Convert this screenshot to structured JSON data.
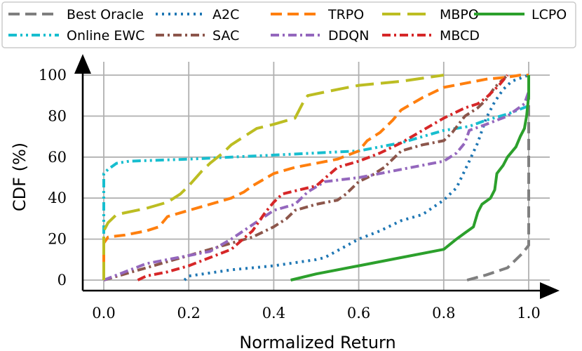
{
  "chart_data": {
    "type": "line",
    "title": "",
    "xlabel": "Normalized Return",
    "ylabel": "CDF (%)",
    "xlim": [
      -0.05,
      1.05
    ],
    "ylim": [
      -5,
      103
    ],
    "grid": true,
    "legend_placement": "top",
    "x_ticks": [
      0.0,
      0.2,
      0.4,
      0.6,
      0.8,
      1.0
    ],
    "x_tick_labels": [
      "0.0",
      "0.2",
      "0.4",
      "0.6",
      "0.8",
      "1.0"
    ],
    "y_ticks": [
      0,
      20,
      40,
      60,
      80,
      100
    ],
    "y_tick_labels": [
      "0",
      "20",
      "40",
      "60",
      "80",
      "100"
    ],
    "series": [
      {
        "name": "Best Oracle",
        "color": "#7f7f7f",
        "dash": "dashed",
        "points": [
          [
            0.855,
            0
          ],
          [
            0.9,
            2.5
          ],
          [
            0.95,
            6
          ],
          [
            0.985,
            13
          ],
          [
            1.0,
            17
          ],
          [
            1.0,
            100
          ]
        ]
      },
      {
        "name": "Online EWC",
        "color": "#17becf",
        "dash": "dashdotdot",
        "points": [
          [
            0.0,
            0
          ],
          [
            0.0,
            52
          ],
          [
            0.01,
            54
          ],
          [
            0.03,
            57
          ],
          [
            0.06,
            58
          ],
          [
            0.2,
            59
          ],
          [
            0.4,
            61
          ],
          [
            0.6,
            63
          ],
          [
            0.7,
            67
          ],
          [
            0.8,
            73
          ],
          [
            0.86,
            75
          ],
          [
            0.9,
            78
          ],
          [
            0.95,
            81
          ],
          [
            1.0,
            85
          ]
        ]
      },
      {
        "name": "A2C",
        "color": "#1f77b4",
        "dash": "dotted",
        "points": [
          [
            0.19,
            0
          ],
          [
            0.2,
            2
          ],
          [
            0.3,
            5
          ],
          [
            0.4,
            7
          ],
          [
            0.5,
            10
          ],
          [
            0.52,
            11
          ],
          [
            0.6,
            20
          ],
          [
            0.65,
            24
          ],
          [
            0.7,
            29
          ],
          [
            0.75,
            32
          ],
          [
            0.8,
            39
          ],
          [
            0.83,
            45
          ],
          [
            0.86,
            58
          ],
          [
            0.88,
            67
          ],
          [
            0.9,
            79
          ],
          [
            0.92,
            87
          ],
          [
            0.94,
            93
          ],
          [
            0.96,
            97
          ],
          [
            1.0,
            100
          ]
        ]
      },
      {
        "name": "SAC",
        "color": "#8c564b",
        "dash": "dashdot",
        "points": [
          [
            0.0,
            0
          ],
          [
            0.05,
            3
          ],
          [
            0.1,
            6
          ],
          [
            0.15,
            9
          ],
          [
            0.2,
            12
          ],
          [
            0.25,
            15
          ],
          [
            0.3,
            18
          ],
          [
            0.35,
            21
          ],
          [
            0.4,
            26
          ],
          [
            0.43,
            30
          ],
          [
            0.45,
            34
          ],
          [
            0.5,
            37
          ],
          [
            0.55,
            39
          ],
          [
            0.57,
            42
          ],
          [
            0.6,
            48
          ],
          [
            0.63,
            51
          ],
          [
            0.66,
            55
          ],
          [
            0.7,
            63
          ],
          [
            0.75,
            66
          ],
          [
            0.8,
            68
          ],
          [
            0.82,
            72
          ],
          [
            0.85,
            80
          ],
          [
            0.88,
            84
          ],
          [
            0.9,
            88
          ],
          [
            0.92,
            94
          ],
          [
            0.95,
            100
          ]
        ]
      },
      {
        "name": "DDQN",
        "color": "#9467bd",
        "dash": "dashdot",
        "points": [
          [
            0.0,
            0
          ],
          [
            0.05,
            4
          ],
          [
            0.1,
            8
          ],
          [
            0.15,
            10
          ],
          [
            0.2,
            12
          ],
          [
            0.25,
            14
          ],
          [
            0.3,
            20
          ],
          [
            0.35,
            27
          ],
          [
            0.4,
            34
          ],
          [
            0.45,
            37
          ],
          [
            0.48,
            43
          ],
          [
            0.52,
            48
          ],
          [
            0.6,
            50
          ],
          [
            0.65,
            52
          ],
          [
            0.7,
            54
          ],
          [
            0.8,
            58
          ],
          [
            0.83,
            62
          ],
          [
            0.85,
            67
          ],
          [
            0.86,
            73
          ],
          [
            0.9,
            76
          ],
          [
            0.95,
            80
          ],
          [
            0.99,
            86
          ],
          [
            1.0,
            92
          ],
          [
            1.0,
            100
          ]
        ]
      },
      {
        "name": "TRPO",
        "color": "#ff7f0e",
        "dash": "dashed",
        "points": [
          [
            0.0,
            0
          ],
          [
            0.0,
            18
          ],
          [
            0.01,
            21
          ],
          [
            0.05,
            22
          ],
          [
            0.1,
            24
          ],
          [
            0.13,
            26
          ],
          [
            0.15,
            31
          ],
          [
            0.2,
            34
          ],
          [
            0.25,
            37
          ],
          [
            0.3,
            40
          ],
          [
            0.33,
            43
          ],
          [
            0.35,
            46
          ],
          [
            0.4,
            52
          ],
          [
            0.45,
            55
          ],
          [
            0.5,
            57
          ],
          [
            0.55,
            59
          ],
          [
            0.6,
            63
          ],
          [
            0.62,
            68
          ],
          [
            0.65,
            72
          ],
          [
            0.68,
            78
          ],
          [
            0.7,
            83
          ],
          [
            0.75,
            89
          ],
          [
            0.8,
            94
          ],
          [
            0.85,
            96
          ],
          [
            0.9,
            98
          ],
          [
            0.95,
            99
          ],
          [
            0.98,
            100
          ],
          [
            1.0,
            100
          ]
        ]
      },
      {
        "name": "MBPO",
        "color": "#bcbd22",
        "dash": "longdash",
        "points": [
          [
            0.0,
            0
          ],
          [
            0.0,
            24
          ],
          [
            0.01,
            28
          ],
          [
            0.03,
            32
          ],
          [
            0.1,
            35
          ],
          [
            0.15,
            38
          ],
          [
            0.18,
            42
          ],
          [
            0.2,
            46
          ],
          [
            0.23,
            53
          ],
          [
            0.25,
            57
          ],
          [
            0.28,
            62
          ],
          [
            0.3,
            66
          ],
          [
            0.33,
            70
          ],
          [
            0.36,
            74
          ],
          [
            0.4,
            76
          ],
          [
            0.45,
            79
          ],
          [
            0.47,
            87
          ],
          [
            0.48,
            90
          ],
          [
            0.55,
            93
          ],
          [
            0.6,
            95
          ],
          [
            0.7,
            97
          ],
          [
            0.8,
            100
          ]
        ]
      },
      {
        "name": "MBCD",
        "color": "#d62728",
        "dash": "dashdot",
        "points": [
          [
            0.08,
            0
          ],
          [
            0.1,
            2
          ],
          [
            0.15,
            4
          ],
          [
            0.2,
            7
          ],
          [
            0.25,
            11
          ],
          [
            0.3,
            15
          ],
          [
            0.35,
            24
          ],
          [
            0.38,
            33
          ],
          [
            0.4,
            38
          ],
          [
            0.42,
            42
          ],
          [
            0.46,
            44
          ],
          [
            0.5,
            46
          ],
          [
            0.55,
            55
          ],
          [
            0.6,
            58
          ],
          [
            0.65,
            62
          ],
          [
            0.7,
            67
          ],
          [
            0.75,
            73
          ],
          [
            0.8,
            79
          ],
          [
            0.85,
            84
          ],
          [
            0.88,
            86
          ],
          [
            0.9,
            89
          ],
          [
            0.93,
            95
          ],
          [
            0.95,
            100
          ]
        ]
      },
      {
        "name": "LCPO",
        "color": "#2ca02c",
        "dash": "solid",
        "points": [
          [
            0.44,
            0
          ],
          [
            0.5,
            3
          ],
          [
            0.6,
            7
          ],
          [
            0.7,
            11
          ],
          [
            0.8,
            15
          ],
          [
            0.83,
            20
          ],
          [
            0.85,
            23
          ],
          [
            0.87,
            26
          ],
          [
            0.88,
            33
          ],
          [
            0.89,
            37
          ],
          [
            0.91,
            40
          ],
          [
            0.92,
            44
          ],
          [
            0.925,
            52
          ],
          [
            0.94,
            56
          ],
          [
            0.95,
            60
          ],
          [
            0.97,
            65
          ],
          [
            0.98,
            70
          ],
          [
            0.99,
            74
          ],
          [
            0.995,
            80
          ],
          [
            1.0,
            90
          ],
          [
            1.0,
            100
          ]
        ]
      }
    ]
  }
}
